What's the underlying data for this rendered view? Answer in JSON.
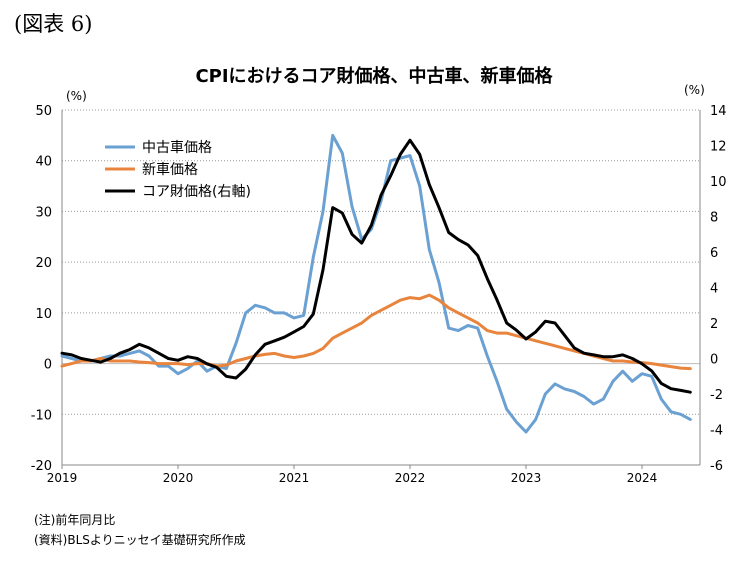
{
  "figure_label": "(図表 6)",
  "notes": {
    "note": "(注)前年同月比",
    "source": "(資料)BLSよりニッセイ基礎研究所作成"
  },
  "chart_data": {
    "type": "line",
    "title": "CPIにおけるコア財価格、中古車、新車価格",
    "left_unit": "(%)",
    "right_unit": "(%)",
    "left_ylim": [
      -20,
      50
    ],
    "left_ticks": [
      -20,
      -10,
      0,
      10,
      20,
      30,
      40,
      50
    ],
    "right_ylim": [
      -6,
      14
    ],
    "right_ticks": [
      -6,
      -4,
      -2,
      0,
      2,
      4,
      6,
      8,
      10,
      12,
      14
    ],
    "x_labels": [
      "2019",
      "2020",
      "2021",
      "2022",
      "2023",
      "2024"
    ],
    "x_start": 2019.0,
    "grid": true,
    "legend_position": "top-left",
    "series": [
      {
        "name": "中古車価格",
        "axis": "left",
        "color": "#6aa0d2",
        "values": [
          1.5,
          1.0,
          0.5,
          0.5,
          1.0,
          1.5,
          1.5,
          2.0,
          2.5,
          1.5,
          -0.5,
          -0.5,
          -2.0,
          -1.0,
          0.5,
          -1.5,
          -0.5,
          -1.0,
          4.0,
          10.0,
          11.5,
          11.0,
          10.0,
          10.0,
          9.0,
          9.5,
          21.0,
          30.0,
          45.0,
          41.5,
          31.0,
          24.5,
          26.5,
          32.0,
          40.0,
          40.5,
          41.0,
          35.0,
          22.5,
          16.0,
          7.0,
          6.5,
          7.5,
          7.0,
          1.5,
          -3.5,
          -9.0,
          -11.5,
          -13.5,
          -11.0,
          -6.0,
          -4.0,
          -5.0,
          -5.5,
          -6.5,
          -8.0,
          -7.0,
          -3.5,
          -1.5,
          -3.5,
          -2.0,
          -2.5,
          -7.0,
          -9.5,
          -10.0,
          -11.0
        ]
      },
      {
        "name": "新車価格",
        "axis": "left",
        "color": "#e8843c",
        "values": [
          -0.5,
          0.0,
          0.5,
          0.5,
          1.0,
          0.5,
          0.5,
          0.5,
          0.3,
          0.2,
          0.0,
          0.0,
          0.0,
          -0.2,
          0.0,
          0.0,
          -0.5,
          -0.3,
          0.5,
          1.0,
          1.5,
          1.8,
          2.0,
          1.5,
          1.2,
          1.5,
          2.0,
          3.0,
          5.0,
          6.0,
          7.0,
          8.0,
          9.5,
          10.5,
          11.5,
          12.5,
          13.0,
          12.8,
          13.5,
          12.5,
          11.0,
          10.0,
          9.0,
          8.0,
          6.5,
          6.0,
          6.0,
          5.5,
          5.0,
          4.5,
          4.0,
          3.5,
          3.0,
          2.5,
          2.0,
          1.5,
          1.0,
          0.5,
          0.5,
          0.3,
          0.2,
          0.0,
          -0.3,
          -0.6,
          -0.9,
          -1.0
        ]
      },
      {
        "name": "コア財価格(右軸)",
        "axis": "right",
        "color": "#000000",
        "values": [
          0.3,
          0.2,
          0.0,
          -0.1,
          -0.2,
          0.0,
          0.3,
          0.5,
          0.8,
          0.6,
          0.3,
          0.0,
          -0.1,
          0.1,
          0.0,
          -0.3,
          -0.5,
          -1.0,
          -1.1,
          -0.6,
          0.2,
          0.8,
          1.0,
          1.2,
          1.5,
          1.8,
          2.5,
          5.0,
          8.5,
          8.2,
          7.0,
          6.5,
          7.5,
          9.2,
          10.3,
          11.5,
          12.3,
          11.5,
          9.8,
          8.5,
          7.1,
          6.7,
          6.4,
          5.8,
          4.5,
          3.3,
          2.0,
          1.6,
          1.1,
          1.5,
          2.1,
          2.0,
          1.3,
          0.6,
          0.3,
          0.2,
          0.1,
          0.1,
          0.2,
          0.0,
          -0.3,
          -0.7,
          -1.4,
          -1.7,
          -1.8,
          -1.9
        ]
      }
    ]
  }
}
